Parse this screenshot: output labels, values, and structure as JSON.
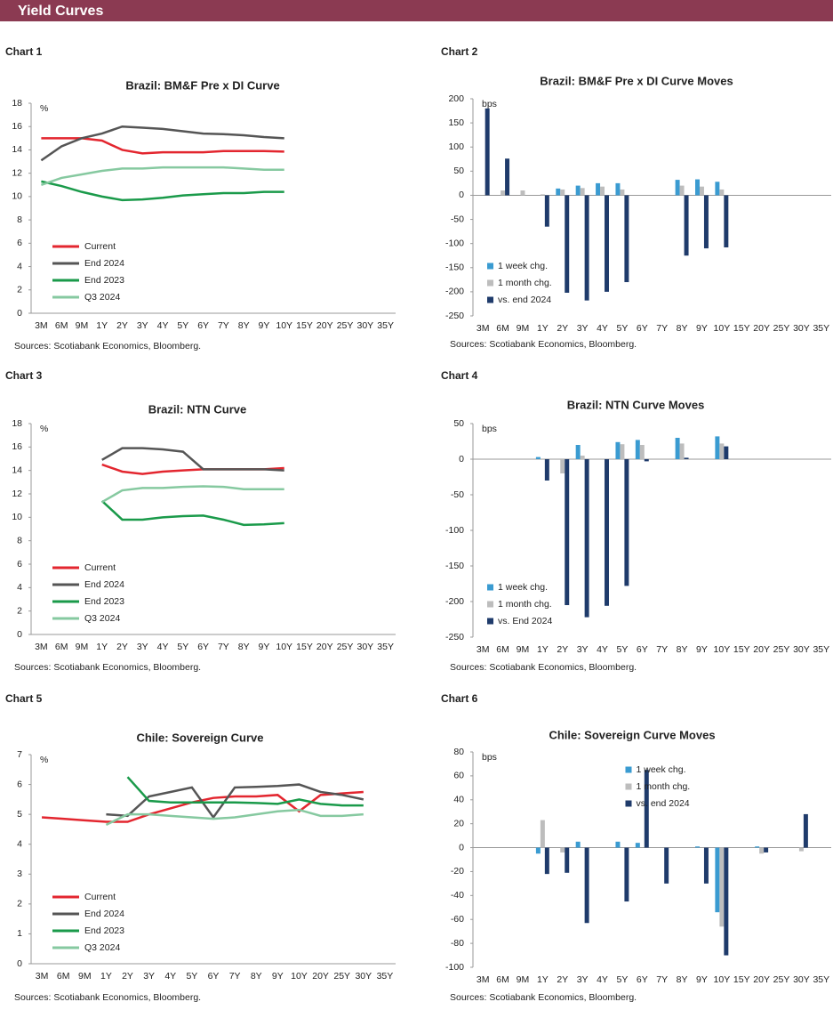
{
  "header": {
    "title": "Yield Curves"
  },
  "chart_data": [
    {
      "type": "line",
      "label": "Chart 1",
      "title": "Brazil: BM&F Pre x DI Curve",
      "unit": "%",
      "sources": "Sources: Scotiabank Economics, Bloomberg.",
      "legend": "lower left",
      "categories": [
        "3M",
        "6M",
        "9M",
        "1Y",
        "2Y",
        "3Y",
        "4Y",
        "5Y",
        "6Y",
        "7Y",
        "8Y",
        "9Y",
        "10Y",
        "15Y",
        "20Y",
        "25Y",
        "30Y",
        "35Y"
      ],
      "ylim": [
        0,
        18
      ],
      "yticks": [
        0,
        2,
        4,
        6,
        8,
        10,
        12,
        14,
        16,
        18
      ],
      "series": [
        {
          "name": "Current",
          "color": "#e3262f",
          "values": [
            15,
            15,
            15,
            14.8,
            14.0,
            13.7,
            13.8,
            13.8,
            13.8,
            13.9,
            13.9,
            13.9,
            13.85,
            null,
            null,
            null,
            null,
            null
          ]
        },
        {
          "name": "End 2024",
          "color": "#555555",
          "values": [
            13.1,
            14.3,
            15.0,
            15.4,
            16.0,
            15.9,
            15.8,
            15.6,
            15.4,
            15.35,
            15.25,
            15.1,
            15.0,
            null,
            null,
            null,
            null,
            null
          ]
        },
        {
          "name": "End 2023",
          "color": "#1a9a4a",
          "values": [
            11.3,
            10.9,
            10.4,
            10.0,
            9.7,
            9.75,
            9.9,
            10.1,
            10.2,
            10.3,
            10.3,
            10.4,
            10.4,
            null,
            null,
            null,
            null,
            null
          ]
        },
        {
          "name": "Q3 2024",
          "color": "#86c9a0",
          "values": [
            11.0,
            11.6,
            11.9,
            12.2,
            12.4,
            12.4,
            12.5,
            12.5,
            12.5,
            12.5,
            12.4,
            12.3,
            12.3,
            null,
            null,
            null,
            null,
            null
          ]
        }
      ]
    },
    {
      "type": "bar",
      "label": "Chart 2",
      "title": "Brazil: BM&F Pre x DI Curve Moves",
      "unit": "bps",
      "sources": "Sources: Scotiabank Economics, Bloomberg.",
      "legend": "lower left",
      "categories": [
        "3M",
        "6M",
        "9M",
        "1Y",
        "2Y",
        "3Y",
        "4Y",
        "5Y",
        "6Y",
        "7Y",
        "8Y",
        "9Y",
        "10Y",
        "15Y",
        "20Y",
        "25Y",
        "30Y",
        "35Y"
      ],
      "ylim": [
        -250,
        200
      ],
      "yticks": [
        -250,
        -200,
        -150,
        -100,
        -50,
        0,
        50,
        100,
        150,
        200
      ],
      "series": [
        {
          "name": "1 week chg.",
          "color": "#3a9bd1",
          "values": [
            0,
            0,
            0,
            0,
            14,
            20,
            25,
            25,
            null,
            null,
            32,
            33,
            28,
            null,
            null,
            null,
            null,
            null
          ]
        },
        {
          "name": "1 month chg.",
          "color": "#bdbdbd",
          "values": [
            0,
            10,
            10,
            2,
            12,
            15,
            18,
            12,
            null,
            null,
            20,
            18,
            12,
            null,
            null,
            null,
            null,
            null
          ]
        },
        {
          "name": "vs. end 2024",
          "color": "#1f3b6b",
          "values": [
            180,
            76,
            0,
            -65,
            -202,
            -218,
            -200,
            -180,
            null,
            null,
            -125,
            -110,
            -108,
            null,
            null,
            null,
            null,
            null
          ]
        }
      ]
    },
    {
      "type": "line",
      "label": "Chart 3",
      "title": "Brazil: NTN Curve",
      "unit": "%",
      "sources": "Sources: Scotiabank Economics, Bloomberg.",
      "legend": "lower left",
      "categories": [
        "3M",
        "6M",
        "9M",
        "1Y",
        "2Y",
        "3Y",
        "4Y",
        "5Y",
        "6Y",
        "7Y",
        "8Y",
        "9Y",
        "10Y",
        "15Y",
        "20Y",
        "25Y",
        "30Y",
        "35Y"
      ],
      "ylim": [
        0,
        18
      ],
      "yticks": [
        0,
        2,
        4,
        6,
        8,
        10,
        12,
        14,
        16,
        18
      ],
      "series": [
        {
          "name": "Current",
          "color": "#e3262f",
          "values": [
            null,
            null,
            null,
            14.5,
            13.9,
            13.7,
            13.9,
            14.0,
            14.1,
            14.1,
            14.1,
            14.1,
            14.2,
            null,
            null,
            null,
            null,
            null
          ]
        },
        {
          "name": "End 2024",
          "color": "#555555",
          "values": [
            null,
            null,
            null,
            14.9,
            15.9,
            15.9,
            15.8,
            15.6,
            14.1,
            14.1,
            14.1,
            14.1,
            14.0,
            null,
            null,
            null,
            null,
            null
          ]
        },
        {
          "name": "End 2023",
          "color": "#1a9a4a",
          "values": [
            null,
            null,
            null,
            11.4,
            9.8,
            9.8,
            10.0,
            10.1,
            10.15,
            9.8,
            9.35,
            9.4,
            9.5,
            null,
            null,
            null,
            null,
            null
          ]
        },
        {
          "name": "Q3 2024",
          "color": "#86c9a0",
          "values": [
            null,
            null,
            null,
            11.3,
            12.3,
            12.5,
            12.5,
            12.6,
            12.65,
            12.6,
            12.4,
            12.4,
            12.4,
            null,
            null,
            null,
            null,
            null
          ]
        }
      ]
    },
    {
      "type": "bar",
      "label": "Chart 4",
      "title": "Brazil: NTN Curve Moves",
      "unit": "bps",
      "sources": "Sources: Scotiabank Economics, Bloomberg.",
      "legend": "lower left",
      "categories": [
        "3M",
        "6M",
        "9M",
        "1Y",
        "2Y",
        "3Y",
        "4Y",
        "5Y",
        "6Y",
        "7Y",
        "8Y",
        "9Y",
        "10Y",
        "15Y",
        "20Y",
        "25Y",
        "30Y",
        "35Y"
      ],
      "ylim": [
        -250,
        50
      ],
      "yticks": [
        -250,
        -200,
        -150,
        -100,
        -50,
        0,
        50
      ],
      "series": [
        {
          "name": "1 week chg.",
          "color": "#3a9bd1",
          "values": [
            null,
            null,
            null,
            3,
            0,
            20,
            0,
            24,
            27,
            null,
            30,
            null,
            32,
            null,
            null,
            null,
            null,
            null
          ]
        },
        {
          "name": "1 month chg.",
          "color": "#bdbdbd",
          "values": [
            null,
            null,
            null,
            0,
            -20,
            5,
            0,
            21,
            20,
            null,
            22,
            null,
            22,
            null,
            null,
            null,
            null,
            null
          ]
        },
        {
          "name": "vs. End 2024",
          "color": "#1f3b6b",
          "values": [
            null,
            null,
            null,
            -30,
            -205,
            -222,
            -206,
            -178,
            -3,
            null,
            2,
            null,
            18,
            null,
            null,
            null,
            null,
            null
          ]
        }
      ]
    },
    {
      "type": "line",
      "label": "Chart 5",
      "title": "Chile: Sovereign Curve",
      "unit": "%",
      "sources": "Sources: Scotiabank Economics, Bloomberg.",
      "legend": "lower left",
      "categories": [
        "3M",
        "6M",
        "9M",
        "1Y",
        "2Y",
        "3Y",
        "4Y",
        "5Y",
        "6Y",
        "7Y",
        "8Y",
        "9Y",
        "10Y",
        "20Y",
        "25Y",
        "30Y",
        "35Y"
      ],
      "ylim": [
        0,
        7
      ],
      "yticks": [
        0,
        1,
        2,
        3,
        4,
        5,
        6,
        7
      ],
      "series": [
        {
          "name": "Current",
          "color": "#e3262f",
          "values": [
            4.9,
            4.85,
            4.8,
            4.75,
            4.75,
            5.0,
            5.2,
            5.4,
            5.55,
            5.6,
            5.6,
            5.65,
            5.1,
            5.65,
            5.7,
            5.75,
            null
          ]
        },
        {
          "name": "End 2024",
          "color": "#555555",
          "values": [
            null,
            null,
            null,
            5.0,
            4.95,
            5.6,
            5.75,
            5.9,
            4.9,
            5.9,
            5.92,
            5.95,
            6.0,
            5.75,
            5.65,
            5.5,
            null
          ]
        },
        {
          "name": "End 2023",
          "color": "#1a9a4a",
          "values": [
            null,
            null,
            null,
            null,
            6.25,
            5.45,
            5.4,
            5.4,
            5.4,
            5.4,
            5.38,
            5.35,
            5.5,
            5.35,
            5.3,
            5.3,
            null
          ]
        },
        {
          "name": "Q3 2024",
          "color": "#86c9a0",
          "values": [
            null,
            null,
            null,
            4.65,
            5.0,
            5.0,
            4.95,
            4.9,
            4.85,
            4.9,
            5.0,
            5.1,
            5.15,
            4.95,
            4.95,
            5.0,
            null
          ]
        }
      ]
    },
    {
      "type": "bar",
      "label": "Chart 6",
      "title": "Chile: Sovereign Curve Moves",
      "unit": "bps",
      "sources": "Sources: Scotiabank Economics, Bloomberg.",
      "legend": "upper center",
      "categories": [
        "3M",
        "6M",
        "9M",
        "1Y",
        "2Y",
        "3Y",
        "4Y",
        "5Y",
        "6Y",
        "7Y",
        "8Y",
        "9Y",
        "10Y",
        "15Y",
        "20Y",
        "25Y",
        "30Y",
        "35Y"
      ],
      "ylim": [
        -100,
        80
      ],
      "yticks": [
        -100,
        -80,
        -60,
        -40,
        -20,
        0,
        20,
        40,
        60,
        80
      ],
      "series": [
        {
          "name": "1 week chg.",
          "color": "#3a9bd1",
          "values": [
            null,
            null,
            null,
            -5,
            0,
            5,
            null,
            5,
            4,
            0,
            null,
            1,
            -54,
            null,
            1,
            null,
            0,
            null
          ]
        },
        {
          "name": "1 month chg.",
          "color": "#bdbdbd",
          "values": [
            null,
            null,
            null,
            23,
            -4,
            0,
            null,
            0,
            0,
            0,
            null,
            0,
            -66,
            null,
            -5,
            null,
            -3,
            null
          ]
        },
        {
          "name": "vs. end 2024",
          "color": "#1f3b6b",
          "values": [
            null,
            null,
            null,
            -22,
            -21,
            -63,
            null,
            -45,
            65,
            -30,
            null,
            -30,
            -90,
            null,
            -4,
            null,
            28,
            null
          ]
        }
      ]
    }
  ]
}
